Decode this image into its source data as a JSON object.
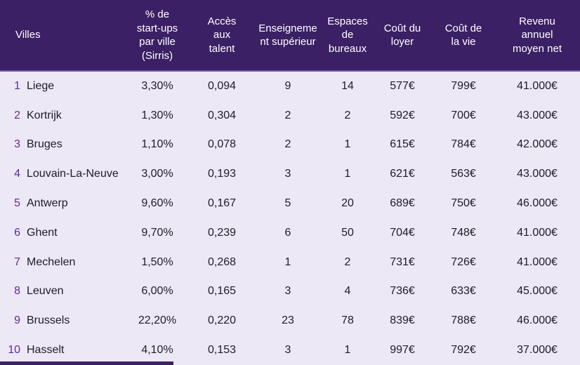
{
  "colors": {
    "header_bg": "#3b2065",
    "header_text": "#ffffff",
    "header_divider": "#6f54a0",
    "body_bg": "#ece8f6",
    "body_text": "#1f1b28",
    "rank_number": "#5e2d91",
    "footer_bar": "#3b2065"
  },
  "header": {
    "villes": "Villes",
    "startups": "% de\nstart-ups\npar ville\n(Sirris)",
    "acces": "Accès\naux\ntalent",
    "enseignement": "Enseigneme\nnt supérieur",
    "espaces": "Espaces\nde\nbureaux",
    "loyer": "Coût du\nloyer",
    "vie": "Coût de\nla vie",
    "revenu": "Revenu\nannuel\nmoyen net"
  },
  "rows": [
    {
      "num": "1",
      "city": "Liege",
      "startups": "3,30%",
      "acces": "0,094",
      "enseignement": "9",
      "espaces": "14",
      "loyer": "577€",
      "vie": "799€",
      "revenu": "41.000€"
    },
    {
      "num": "2",
      "city": "Kortrijk",
      "startups": "1,30%",
      "acces": "0,304",
      "enseignement": "2",
      "espaces": "2",
      "loyer": "592€",
      "vie": "700€",
      "revenu": "43.000€"
    },
    {
      "num": "3",
      "city": "Bruges",
      "startups": "1,10%",
      "acces": "0,078",
      "enseignement": "2",
      "espaces": "1",
      "loyer": "615€",
      "vie": "784€",
      "revenu": "42.000€"
    },
    {
      "num": "4",
      "city": "Louvain-La-Neuve",
      "startups": "3,00%",
      "acces": "0,193",
      "enseignement": "3",
      "espaces": "1",
      "loyer": "621€",
      "vie": "563€",
      "revenu": "43.000€"
    },
    {
      "num": "5",
      "city": "Antwerp",
      "startups": "9,60%",
      "acces": "0,167",
      "enseignement": "5",
      "espaces": "20",
      "loyer": "689€",
      "vie": "750€",
      "revenu": "46.000€"
    },
    {
      "num": "6",
      "city": "Ghent",
      "startups": "9,70%",
      "acces": "0,239",
      "enseignement": "6",
      "espaces": "50",
      "loyer": "704€",
      "vie": "748€",
      "revenu": "41.000€"
    },
    {
      "num": "7",
      "city": "Mechelen",
      "startups": "1,50%",
      "acces": "0,268",
      "enseignement": "1",
      "espaces": "2",
      "loyer": "731€",
      "vie": "726€",
      "revenu": "41.000€"
    },
    {
      "num": "8",
      "city": "Leuven",
      "startups": "6,00%",
      "acces": "0,165",
      "enseignement": "3",
      "espaces": "4",
      "loyer": "736€",
      "vie": "633€",
      "revenu": "45.000€"
    },
    {
      "num": "9",
      "city": "Brussels",
      "startups": "22,20%",
      "acces": "0,220",
      "enseignement": "23",
      "espaces": "78",
      "loyer": "839€",
      "vie": "788€",
      "revenu": "46.000€"
    },
    {
      "num": "10",
      "city": "Hasselt",
      "startups": "4,10%",
      "acces": "0,153",
      "enseignement": "3",
      "espaces": "1",
      "loyer": "997€",
      "vie": "792€",
      "revenu": "37.000€"
    }
  ],
  "chart_data": {
    "type": "table",
    "title": "",
    "columns": [
      "Villes",
      "% de start-ups par ville (Sirris)",
      "Accès aux talent",
      "Enseignement supérieur",
      "Espaces de bureaux",
      "Coût du loyer",
      "Coût de la vie",
      "Revenu annuel moyen net"
    ],
    "rows": [
      [
        "Liege",
        "3,30%",
        "0,094",
        9,
        14,
        "577€",
        "799€",
        "41.000€"
      ],
      [
        "Kortrijk",
        "1,30%",
        "0,304",
        2,
        2,
        "592€",
        "700€",
        "43.000€"
      ],
      [
        "Bruges",
        "1,10%",
        "0,078",
        2,
        1,
        "615€",
        "784€",
        "42.000€"
      ],
      [
        "Louvain-La-Neuve",
        "3,00%",
        "0,193",
        3,
        1,
        "621€",
        "563€",
        "43.000€"
      ],
      [
        "Antwerp",
        "9,60%",
        "0,167",
        5,
        20,
        "689€",
        "750€",
        "46.000€"
      ],
      [
        "Ghent",
        "9,70%",
        "0,239",
        6,
        50,
        "704€",
        "748€",
        "41.000€"
      ],
      [
        "Mechelen",
        "1,50%",
        "0,268",
        1,
        2,
        "731€",
        "726€",
        "41.000€"
      ],
      [
        "Leuven",
        "6,00%",
        "0,165",
        3,
        4,
        "736€",
        "633€",
        "45.000€"
      ],
      [
        "Brussels",
        "22,20%",
        "0,220",
        23,
        78,
        "839€",
        "788€",
        "46.000€"
      ],
      [
        "Hasselt",
        "4,10%",
        "0,153",
        3,
        1,
        "997€",
        "792€",
        "37.000€"
      ]
    ]
  }
}
